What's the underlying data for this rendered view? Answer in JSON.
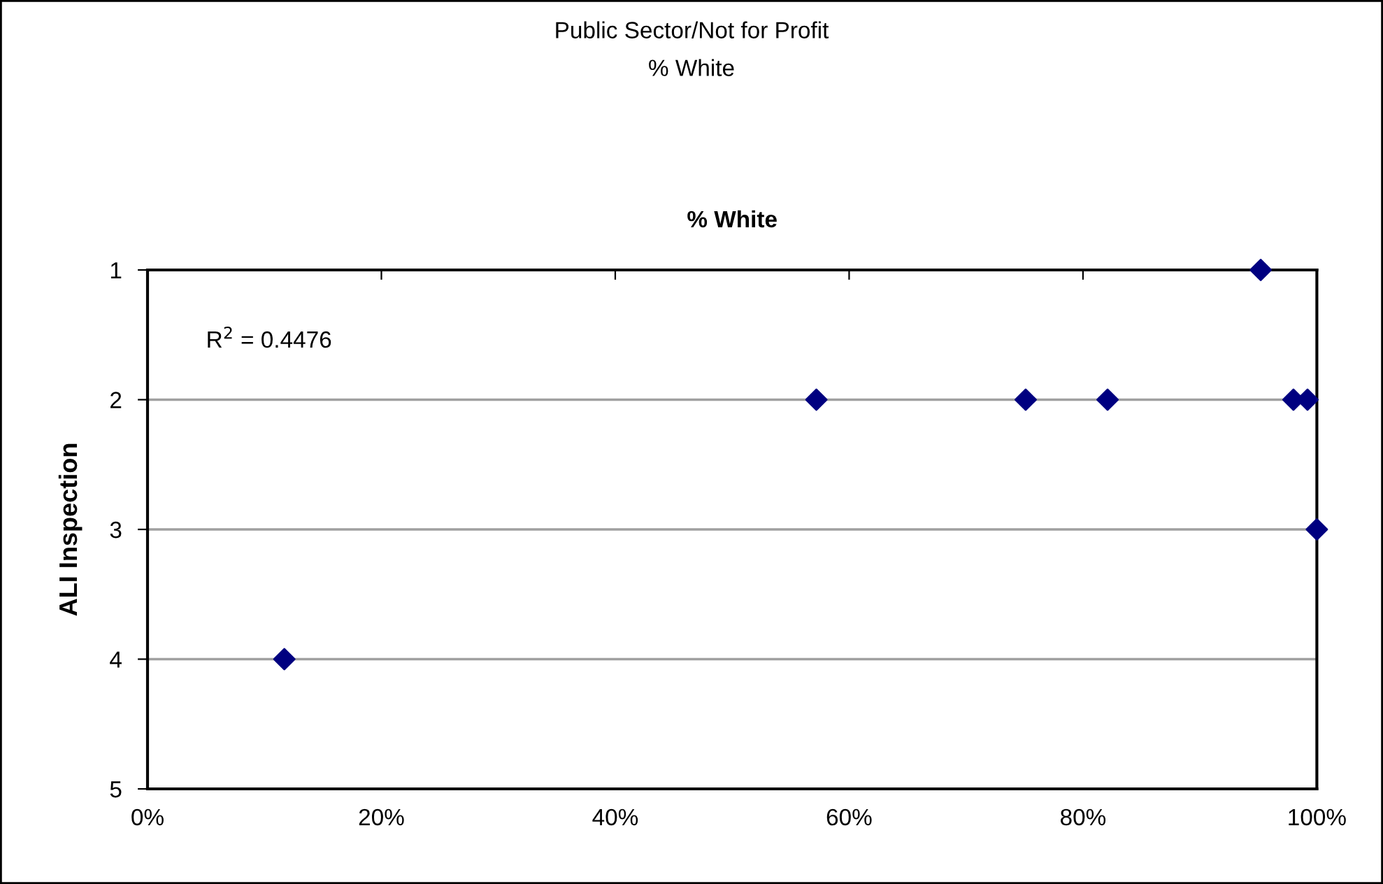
{
  "chart_data": {
    "type": "scatter",
    "title": "Public Sector/Not for Profit",
    "subtitle": "% White",
    "xlabel": "% White",
    "ylabel": "ALI Inspection",
    "x": [
      0.117,
      0.572,
      0.751,
      0.821,
      0.952,
      0.98,
      0.992,
      1.0
    ],
    "series": [
      {
        "color": "#000080",
        "values": [
          4,
          2,
          2,
          2,
          1,
          2,
          2,
          3
        ]
      }
    ],
    "marker": "diamond",
    "xlim": [
      0,
      1
    ],
    "ylim": [
      5,
      1
    ],
    "xticks": [
      {
        "value": 0,
        "label": "0%"
      },
      {
        "value": 0.2,
        "label": "20%"
      },
      {
        "value": 0.4,
        "label": "40%"
      },
      {
        "value": 0.6,
        "label": "60%"
      },
      {
        "value": 0.8,
        "label": "80%"
      },
      {
        "value": 1,
        "label": "100%"
      }
    ],
    "yticks": [
      1,
      2,
      3,
      4,
      5
    ],
    "grid": "y",
    "legend": false,
    "annotations": [
      "R$^{2}$ = 0.4476"
    ]
  }
}
